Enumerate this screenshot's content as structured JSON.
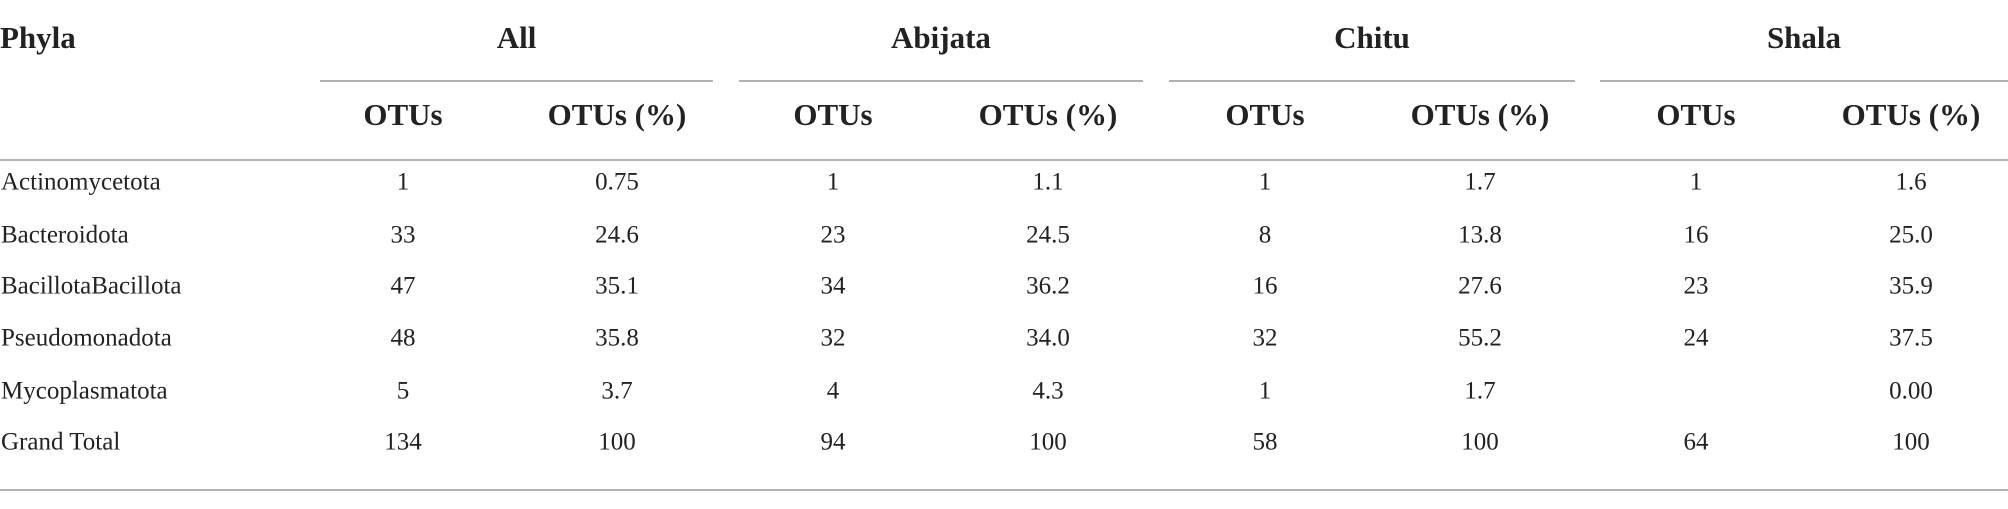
{
  "table": {
    "corner": "Phyla",
    "groups": [
      "All",
      "Abijata",
      "Chitu",
      "Shala"
    ],
    "subheaders": [
      "OTUs",
      "OTUs (%)",
      "OTUs",
      "OTUs (%)",
      "OTUs",
      "OTUs (%)",
      "OTUs",
      "OTUs (%)"
    ],
    "rows": [
      [
        "Actinomycetota",
        "1",
        "0.75",
        "1",
        "1.1",
        "1",
        "1.7",
        "1",
        "1.6"
      ],
      [
        "Bacteroidota",
        "33",
        "24.6",
        "23",
        "24.5",
        "8",
        "13.8",
        "16",
        "25.0"
      ],
      [
        "BacillotaBacillota",
        "47",
        "35.1",
        "34",
        "36.2",
        "16",
        "27.6",
        "23",
        "35.9"
      ],
      [
        "Pseudomonadota",
        "48",
        "35.8",
        "32",
        "34.0",
        "32",
        "55.2",
        "24",
        "37.5"
      ],
      [
        "Mycoplasmatota",
        "5",
        "3.7",
        "4",
        "4.3",
        "1",
        "1.7",
        null,
        "0.00"
      ],
      [
        "Grand Total",
        "134",
        "100",
        "94",
        "100",
        "58",
        "100",
        "64",
        "100"
      ]
    ]
  }
}
